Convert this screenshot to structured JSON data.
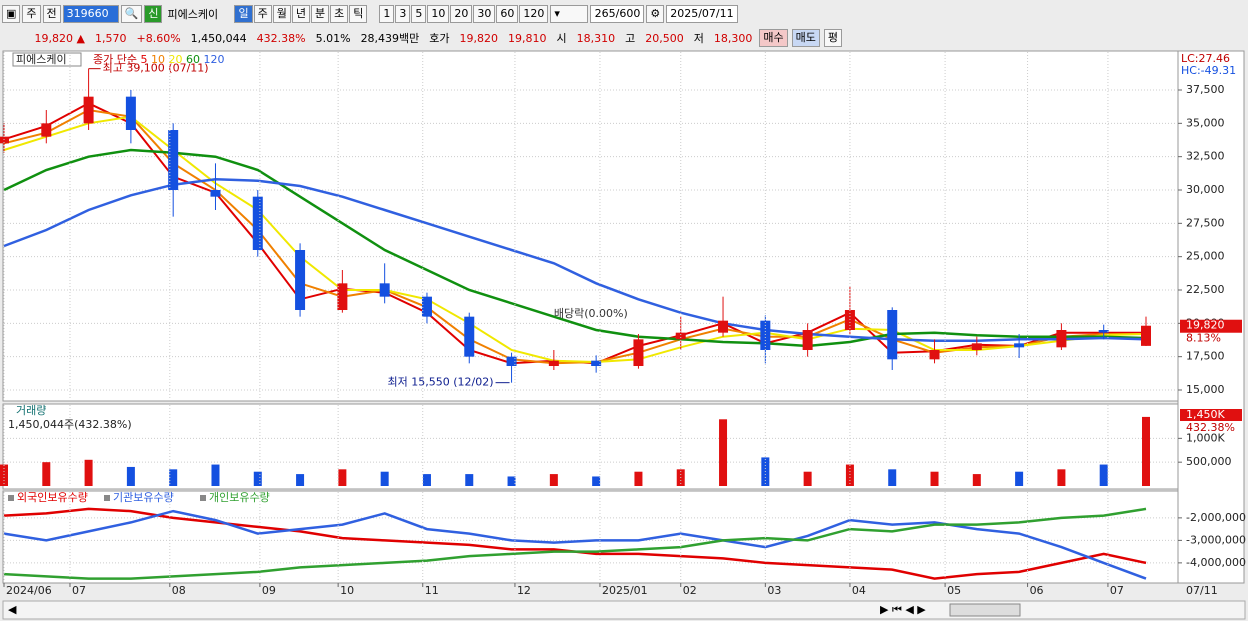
{
  "toolbar": {
    "market": "주",
    "prev": "전",
    "code": "319660",
    "badge": "신",
    "name": "피에스케이",
    "periods": [
      "일",
      "주",
      "월",
      "년",
      "분",
      "초",
      "틱"
    ],
    "intervals": [
      "1",
      "3",
      "5",
      "10",
      "20",
      "30",
      "60",
      "120"
    ],
    "count": "265",
    "max": "/600",
    "date": "2025/07/11"
  },
  "quote": {
    "price": "19,820",
    "arrow": "▲",
    "change": "1,570",
    "change_pct": "+8.60%",
    "volume": "1,450,044",
    "volume_ratio": "432.38%",
    "turnover": "5.01%",
    "amount": "28,439백만",
    "ask_label": "호가",
    "ask": "19,820",
    "bid": "19,810",
    "open_label": "시",
    "open": "18,310",
    "high_label": "고",
    "high": "20,500",
    "low_label": "저",
    "low": "18,300",
    "buy": "매수",
    "sell": "매도",
    "avg": "평"
  },
  "chart_data": [
    {
      "type": "candlestick",
      "name_label": "피에스케이",
      "legend_title": "종가 단순",
      "high_note": "최고 39,100 (07/11)",
      "low_note": "최저 15,550 (12/02)",
      "dividend_note": "배당락(0.00%)",
      "lc": "LC:27.46",
      "hc": "HC:-49.31",
      "last_label": "19,820",
      "last_pct": "8.13%",
      "up_color": "#e01010",
      "down_color": "#1450e0",
      "x": [
        0,
        1,
        2,
        3,
        4,
        5,
        6,
        7,
        8,
        9,
        10,
        11,
        12,
        13,
        14,
        15,
        16,
        17,
        18,
        19,
        20,
        21,
        22,
        23,
        24,
        25,
        26,
        27
      ],
      "xlim": [
        0,
        27
      ],
      "open": [
        33500,
        34000,
        35000,
        37000,
        34500,
        30000,
        29500,
        25500,
        21000,
        23000,
        22000,
        20500,
        17500,
        16800,
        17200,
        16800,
        18800,
        19300,
        20200,
        18000,
        19500,
        21000,
        17300,
        18000,
        18500,
        18200,
        19500,
        18310
      ],
      "high": [
        35000,
        36000,
        39100,
        37500,
        35000,
        32000,
        30000,
        26000,
        24000,
        24500,
        22300,
        20800,
        17800,
        18000,
        17600,
        19200,
        20500,
        22000,
        20600,
        20000,
        22800,
        21200,
        18800,
        19000,
        19200,
        20000,
        19900,
        20500
      ],
      "low": [
        32800,
        33500,
        34500,
        33500,
        28000,
        28500,
        25000,
        20500,
        20800,
        21500,
        20000,
        17000,
        15550,
        16500,
        16300,
        16600,
        18000,
        19000,
        17000,
        17500,
        19200,
        16500,
        17000,
        17600,
        17400,
        18000,
        18800,
        18300
      ],
      "close": [
        34000,
        35000,
        37000,
        34500,
        30000,
        29500,
        25500,
        21000,
        23000,
        22000,
        20500,
        17500,
        16800,
        17200,
        16800,
        18800,
        19300,
        20200,
        18000,
        19500,
        21000,
        17300,
        18000,
        18500,
        18200,
        19500,
        19300,
        19820
      ],
      "series": [
        {
          "name": "5",
          "color": "#e00000",
          "values": [
            33800,
            34800,
            36500,
            35000,
            31000,
            29800,
            26000,
            21800,
            22600,
            22300,
            20800,
            18000,
            17000,
            17200,
            17000,
            18300,
            19100,
            20000,
            18500,
            19300,
            20800,
            17800,
            17900,
            18400,
            18300,
            19300,
            19300,
            19300
          ]
        },
        {
          "name": "10",
          "color": "#f08000",
          "values": [
            33500,
            34300,
            36000,
            35500,
            32000,
            30000,
            27000,
            23000,
            22000,
            22500,
            21200,
            18800,
            17300,
            17000,
            17100,
            17800,
            18800,
            19600,
            19000,
            19000,
            20300,
            18800,
            17800,
            18200,
            18300,
            19000,
            19200,
            19200
          ]
        },
        {
          "name": "20",
          "color": "#f0e800",
          "values": [
            33000,
            34000,
            35000,
            35500,
            33000,
            30500,
            28500,
            25000,
            22500,
            22500,
            21800,
            20000,
            18000,
            17200,
            17100,
            17300,
            18200,
            19000,
            19300,
            18800,
            19600,
            19500,
            18000,
            18000,
            18300,
            18700,
            19100,
            19200
          ]
        },
        {
          "name": "60",
          "color": "#109010",
          "values": [
            30000,
            31500,
            32500,
            33000,
            32800,
            32500,
            31500,
            29500,
            27500,
            25500,
            24000,
            22500,
            21500,
            20500,
            19500,
            19000,
            18800,
            18600,
            18500,
            18300,
            18600,
            19200,
            19300,
            19100,
            19000,
            19000,
            19000,
            18900
          ]
        },
        {
          "name": "120",
          "color": "#3060e0",
          "values": [
            25800,
            27000,
            28500,
            29600,
            30400,
            30800,
            30700,
            30300,
            29500,
            28500,
            27500,
            26500,
            25500,
            24500,
            23000,
            21800,
            20800,
            20000,
            19500,
            19200,
            19000,
            18800,
            18700,
            18700,
            18800,
            18800,
            18900,
            18800
          ]
        }
      ],
      "ylim": [
        14250,
        40350
      ],
      "yticks": [
        {
          "value": 15000,
          "label": "15,000"
        },
        {
          "value": 17500,
          "label": "17,500"
        },
        {
          "value": 20000,
          "label": "20,000"
        },
        {
          "value": 22500,
          "label": "22,500"
        },
        {
          "value": 25000,
          "label": "25,000"
        },
        {
          "value": 27500,
          "label": "27,500"
        },
        {
          "value": 30000,
          "label": "30,000"
        },
        {
          "value": 32500,
          "label": "32,500"
        },
        {
          "value": 35000,
          "label": "35,000"
        },
        {
          "value": 37500,
          "label": "37,500"
        }
      ]
    },
    {
      "type": "bar",
      "title": "거래량",
      "summary": "1,450,044주(432.38%)",
      "last_label": "1,450K",
      "last_pct": "432.38%",
      "x": [
        0,
        1,
        2,
        3,
        4,
        5,
        6,
        7,
        8,
        9,
        10,
        11,
        12,
        13,
        14,
        15,
        16,
        17,
        18,
        19,
        20,
        21,
        22,
        23,
        24,
        25,
        26,
        27
      ],
      "xlim": [
        0,
        27
      ],
      "values": [
        450000,
        500000,
        550000,
        400000,
        350000,
        450000,
        300000,
        250000,
        350000,
        300000,
        250000,
        250000,
        200000,
        250000,
        200000,
        300000,
        350000,
        1400000,
        600000,
        300000,
        450000,
        350000,
        300000,
        250000,
        300000,
        350000,
        450000,
        1450044
      ],
      "ylim": [
        0,
        1700000
      ],
      "yticks": [
        {
          "value": 500000,
          "label": "500,000"
        },
        {
          "value": 1000000,
          "label": "1,000K"
        }
      ]
    },
    {
      "type": "line",
      "x": [
        0,
        1,
        2,
        3,
        4,
        5,
        6,
        7,
        8,
        9,
        10,
        11,
        12,
        13,
        14,
        15,
        16,
        17,
        18,
        19,
        20,
        21,
        22,
        23,
        24,
        25,
        26,
        27
      ],
      "xlim": [
        0,
        27
      ],
      "series": [
        {
          "name": "외국인보유수량",
          "color": "#e00000",
          "values": [
            -1900000,
            -1800000,
            -1600000,
            -1700000,
            -2000000,
            -2200000,
            -2400000,
            -2600000,
            -2900000,
            -3000000,
            -3100000,
            -3200000,
            -3400000,
            -3400000,
            -3600000,
            -3600000,
            -3700000,
            -3800000,
            -4000000,
            -4100000,
            -4200000,
            -4300000,
            -4700000,
            -4500000,
            -4400000,
            -4000000,
            -3600000,
            -4000000
          ]
        },
        {
          "name": "기관보유수량",
          "color": "#3060e0",
          "values": [
            -2700000,
            -3000000,
            -2600000,
            -2200000,
            -1700000,
            -2100000,
            -2700000,
            -2500000,
            -2300000,
            -1800000,
            -2500000,
            -2700000,
            -3000000,
            -3100000,
            -3000000,
            -3000000,
            -2700000,
            -3000000,
            -3300000,
            -2800000,
            -2100000,
            -2300000,
            -2200000,
            -2500000,
            -2700000,
            -3300000,
            -4000000,
            -4700000
          ]
        },
        {
          "name": "개인보유수량",
          "color": "#30a030",
          "values": [
            -4500000,
            -4600000,
            -4700000,
            -4700000,
            -4600000,
            -4500000,
            -4400000,
            -4200000,
            -4100000,
            -4000000,
            -3900000,
            -3700000,
            -3600000,
            -3500000,
            -3500000,
            -3400000,
            -3300000,
            -3000000,
            -2900000,
            -3000000,
            -2500000,
            -2600000,
            -2300000,
            -2300000,
            -2200000,
            -2000000,
            -1900000,
            -1600000
          ]
        }
      ],
      "ylim": [
        -4850000,
        -850000
      ],
      "yticks": [
        {
          "value": -2000000,
          "label": "-2,000,000"
        },
        {
          "value": -3000000,
          "label": "-3,000,000"
        },
        {
          "value": -4000000,
          "label": "-4,000,000"
        }
      ],
      "xticks": [
        {
          "value": 0,
          "label": "2024/06"
        },
        {
          "value": 1.56,
          "label": "07"
        },
        {
          "value": 3.92,
          "label": "08"
        },
        {
          "value": 6.05,
          "label": "09"
        },
        {
          "value": 7.9,
          "label": "10"
        },
        {
          "value": 9.9,
          "label": "11"
        },
        {
          "value": 12.08,
          "label": "12"
        },
        {
          "value": 14.09,
          "label": "2025/01"
        },
        {
          "value": 16,
          "label": "02"
        },
        {
          "value": 18,
          "label": "03"
        },
        {
          "value": 20,
          "label": "04"
        },
        {
          "value": 22.25,
          "label": "05"
        },
        {
          "value": 24.2,
          "label": "06"
        },
        {
          "value": 26.1,
          "label": "07"
        }
      ],
      "end_label": "07/11"
    }
  ]
}
